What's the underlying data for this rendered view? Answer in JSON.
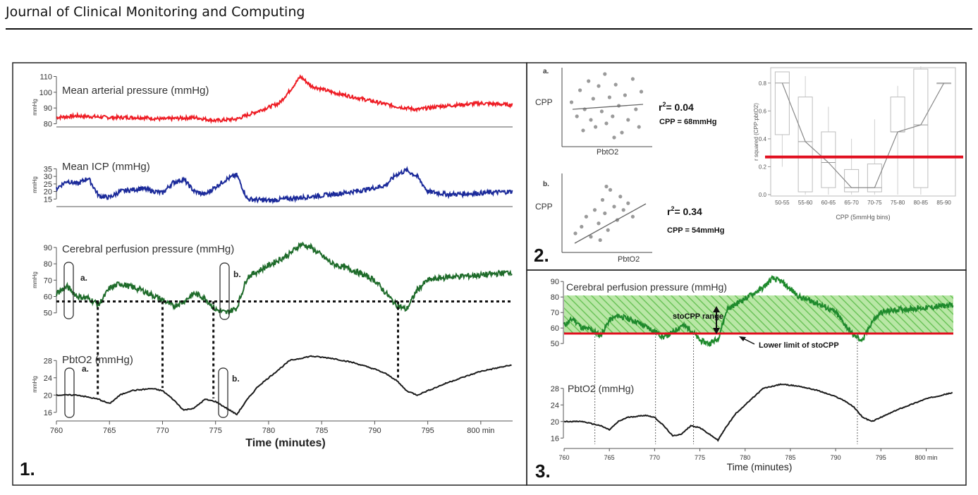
{
  "header": {
    "journal": "Journal of Clinical Monitoring and Computing"
  },
  "colors": {
    "map": "#ee1c24",
    "icp": "#1b2a9a",
    "cpp": "#1e6b2a",
    "pbto2": "#1a1a1a",
    "threshold": "#e10f1f"
  },
  "panel1": {
    "number": "1.",
    "xticks": [
      "760",
      "765",
      "770",
      "775",
      "780",
      "785",
      "790",
      "795",
      "800 min"
    ],
    "xlabel": "Time (minutes)",
    "unit": "mmHg",
    "map": {
      "title": "Mean arterial pressure (mmHg)",
      "yticks": [
        "110",
        "100",
        "90",
        "80"
      ]
    },
    "icp": {
      "title": "Mean ICP (mmHg)",
      "yticks": [
        "35",
        "30",
        "25",
        "20",
        "15"
      ]
    },
    "cpp": {
      "title": "Cerebral perfusion pressure (mmHg)",
      "yticks": [
        "90",
        "80",
        "70",
        "60",
        "50"
      ],
      "mark_a": "a.",
      "mark_b": "b."
    },
    "pbto2": {
      "title": "PbtO2 (mmHg)",
      "yticks": [
        "28",
        "24",
        "20",
        "16"
      ],
      "mark_a": "a.",
      "mark_b": "b."
    }
  },
  "panel2": {
    "number": "2.",
    "a": {
      "label": "a.",
      "ylabel": "CPP",
      "xlabel": "PbtO2",
      "r2_prefix": "r",
      "r2_sup": "2",
      "r2_value": "= 0.04",
      "cpp": "CPP = 68mmHg"
    },
    "b": {
      "label": "b.",
      "ylabel": "CPP",
      "xlabel": "PbtO2",
      "r2_prefix": "r",
      "r2_sup": "2",
      "r2_value": "= 0.34",
      "cpp": "CPP = 54mmHg"
    },
    "box": {
      "ylabel": "r squared (CPP:pbtO2)",
      "xlabel": "CPP (5mmHg bins)",
      "yticks": [
        "0.8",
        "0.6",
        "0.4",
        "0.2",
        "0.0"
      ],
      "categories": [
        "50-55",
        "55-60",
        "60-65",
        "65-70",
        "70-75",
        "75-80",
        "80-85",
        "85-90"
      ],
      "threshold": 0.27
    }
  },
  "panel3": {
    "number": "3.",
    "cpp": {
      "title": "Cerebral perfusion pressure (mmHg)",
      "yticks": [
        "90",
        "80",
        "70",
        "60",
        "50"
      ],
      "range_label": "stoCPP range",
      "lower_label": "Lower limit of stoCPP"
    },
    "pbto2": {
      "title": "PbtO2 (mmHg)",
      "yticks": [
        "28",
        "24",
        "20",
        "16"
      ]
    },
    "xticks": [
      "760",
      "765",
      "770",
      "775",
      "780",
      "785",
      "790",
      "795",
      "800 min"
    ],
    "xlabel": "Time (minutes)"
  },
  "chart_data": [
    {
      "type": "line",
      "id": "map",
      "title": "Mean arterial pressure (mmHg)",
      "ylabel": "mmHg",
      "x": [
        760,
        762,
        765,
        768,
        770,
        773,
        775,
        777,
        779,
        781,
        782,
        783,
        784,
        786,
        788,
        790,
        792,
        794,
        796,
        798,
        800,
        803
      ],
      "values": [
        84,
        85,
        84,
        84,
        83,
        84,
        82,
        83,
        88,
        93,
        101,
        110,
        104,
        100,
        97,
        94,
        91,
        89,
        91,
        92,
        93,
        92
      ],
      "ylim": [
        78,
        112
      ]
    },
    {
      "type": "line",
      "id": "icp",
      "title": "Mean ICP (mmHg)",
      "ylabel": "mmHg",
      "x": [
        760,
        761,
        762,
        763,
        764,
        765,
        766,
        768,
        770,
        771,
        772,
        773,
        774,
        776,
        777,
        778,
        780,
        783,
        786,
        789,
        791,
        792,
        793,
        794,
        795,
        797,
        800,
        803
      ],
      "values": [
        22,
        27,
        25,
        29,
        17,
        16,
        20,
        22,
        19,
        26,
        28,
        20,
        18,
        28,
        31,
        15,
        14,
        16,
        18,
        21,
        24,
        31,
        34,
        30,
        20,
        18,
        19,
        20
      ],
      "ylim": [
        10,
        38
      ]
    },
    {
      "type": "line",
      "id": "cpp",
      "title": "Cerebral perfusion pressure (mmHg)",
      "ylabel": "mmHg",
      "x": [
        760,
        761,
        762,
        763,
        764,
        765,
        766,
        768,
        770,
        771,
        772,
        773,
        774,
        775,
        776,
        777,
        778,
        780,
        782,
        783,
        784,
        786,
        788,
        790,
        792,
        793,
        794,
        795,
        797,
        800,
        803
      ],
      "values": [
        62,
        66,
        60,
        59,
        55,
        65,
        68,
        64,
        58,
        54,
        57,
        62,
        59,
        52,
        50,
        53,
        72,
        79,
        86,
        92,
        90,
        80,
        76,
        70,
        55,
        52,
        64,
        70,
        72,
        73,
        75
      ],
      "ylim": [
        46,
        96
      ],
      "threshold": 57
    },
    {
      "type": "line",
      "id": "pbto2",
      "title": "PbtO2 (mmHg)",
      "ylabel": "mmHg",
      "x": [
        760,
        762,
        763,
        764,
        765,
        766,
        767,
        769,
        770,
        771,
        772,
        773,
        774,
        775,
        776,
        777,
        778,
        779,
        780,
        781,
        782,
        784,
        786,
        788,
        790,
        791,
        792,
        793,
        794,
        795,
        797,
        800,
        803
      ],
      "values": [
        20,
        20,
        19.5,
        19,
        18,
        20,
        21,
        21.5,
        21,
        19,
        16.5,
        17,
        19,
        18.5,
        17,
        15.5,
        19,
        22,
        24,
        26,
        28,
        29,
        28.5,
        27.5,
        26,
        25,
        23.5,
        21,
        20,
        21,
        23,
        25.5,
        27
      ],
      "ylim": [
        14,
        30
      ]
    },
    {
      "type": "scatter",
      "id": "panel2a",
      "xlabel": "PbtO2",
      "ylabel": "CPP",
      "points": [
        [
          0.05,
          0.55
        ],
        [
          0.12,
          0.35
        ],
        [
          0.16,
          0.72
        ],
        [
          0.2,
          0.15
        ],
        [
          0.22,
          0.45
        ],
        [
          0.27,
          0.85
        ],
        [
          0.3,
          0.3
        ],
        [
          0.33,
          0.6
        ],
        [
          0.36,
          0.2
        ],
        [
          0.4,
          0.78
        ],
        [
          0.44,
          0.42
        ],
        [
          0.48,
          0.95
        ],
        [
          0.5,
          0.25
        ],
        [
          0.54,
          0.62
        ],
        [
          0.58,
          0.35
        ],
        [
          0.62,
          0.8
        ],
        [
          0.66,
          0.5
        ],
        [
          0.7,
          0.12
        ],
        [
          0.74,
          0.65
        ],
        [
          0.78,
          0.3
        ],
        [
          0.84,
          0.88
        ],
        [
          0.88,
          0.45
        ],
        [
          0.92,
          0.2
        ],
        [
          0.6,
          0.05
        ],
        [
          0.95,
          0.7
        ]
      ]
    },
    {
      "type": "scatter",
      "id": "panel2b",
      "xlabel": "PbtO2",
      "ylabel": "CPP",
      "points": [
        [
          0.1,
          0.2
        ],
        [
          0.18,
          0.3
        ],
        [
          0.24,
          0.45
        ],
        [
          0.3,
          0.15
        ],
        [
          0.35,
          0.55
        ],
        [
          0.4,
          0.35
        ],
        [
          0.45,
          0.7
        ],
        [
          0.48,
          0.5
        ],
        [
          0.52,
          0.25
        ],
        [
          0.55,
          0.85
        ],
        [
          0.6,
          0.6
        ],
        [
          0.64,
          0.4
        ],
        [
          0.68,
          0.75
        ],
        [
          0.72,
          0.55
        ],
        [
          0.78,
          0.65
        ],
        [
          0.84,
          0.45
        ],
        [
          0.5,
          0.9
        ],
        [
          0.42,
          0.1
        ]
      ]
    },
    {
      "type": "box",
      "id": "panel2-box",
      "xlabel": "CPP (5mmHg bins)",
      "ylabel": "r squared (CPP:pbtO2)",
      "categories": [
        "50-55",
        "55-60",
        "60-65",
        "65-70",
        "70-75",
        "75-80",
        "80-85",
        "85-90"
      ],
      "boxes": [
        {
          "q1": 0.43,
          "median": 0.8,
          "q3": 0.88,
          "min": 0.2,
          "max": 0.88
        },
        {
          "q1": 0.02,
          "median": 0.38,
          "q3": 0.7,
          "min": 0.0,
          "max": 0.85
        },
        {
          "q1": 0.05,
          "median": 0.23,
          "q3": 0.45,
          "min": 0.0,
          "max": 0.63
        },
        {
          "q1": 0.02,
          "median": 0.05,
          "q3": 0.18,
          "min": 0.0,
          "max": 0.4
        },
        {
          "q1": 0.02,
          "median": 0.05,
          "q3": 0.22,
          "min": 0.0,
          "max": 0.54
        },
        {
          "q1": 0.45,
          "median": 0.45,
          "q3": 0.7,
          "min": 0.0,
          "max": 0.78
        },
        {
          "q1": 0.05,
          "median": 0.5,
          "q3": 0.9,
          "min": 0.0,
          "max": 0.92
        },
        {
          "q1": 0.8,
          "median": 0.8,
          "q3": 0.8,
          "min": 0.8,
          "max": 0.8
        }
      ],
      "ylim": [
        0,
        0.9
      ],
      "threshold": 0.27
    }
  ]
}
